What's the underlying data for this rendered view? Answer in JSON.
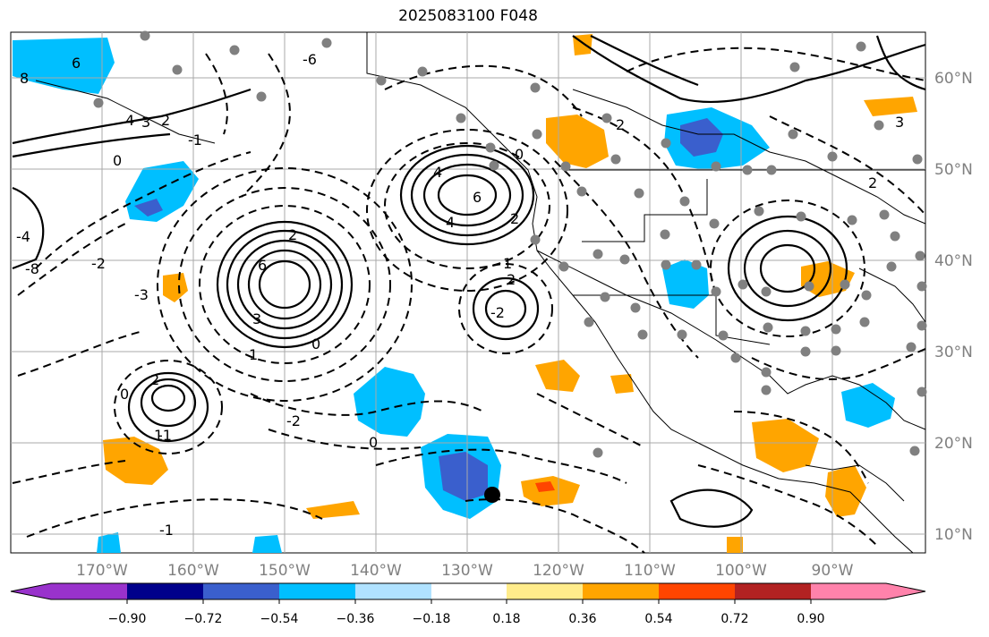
{
  "title": "2025083100 F048",
  "map": {
    "longitude_labels": [
      "170°W",
      "160°W",
      "150°W",
      "140°W",
      "130°W",
      "120°W",
      "110°W",
      "100°W",
      "90°W"
    ],
    "latitude_labels": [
      "10°N",
      "20°N",
      "30°N",
      "40°N",
      "50°N",
      "60°N"
    ],
    "contour_labels": [
      "6",
      "8",
      "4",
      "3",
      "2",
      "0",
      "-1",
      "-2",
      "-3",
      "-4",
      "-6",
      "-8",
      "6",
      "3",
      "2",
      "1",
      "0",
      "-2",
      "6",
      "4",
      "2",
      "0",
      "2",
      "1",
      "0",
      "-1",
      "2",
      "1",
      "0",
      "-1",
      "-2",
      "2",
      "3",
      "4",
      "2"
    ],
    "stations_marker": "gray-dot",
    "storm_marker": "black-dot"
  },
  "colorbar": {
    "tick_labels": [
      "−0.90",
      "−0.72",
      "−0.54",
      "−0.36",
      "−0.18",
      "0.18",
      "0.36",
      "0.54",
      "0.72",
      "0.90"
    ],
    "colors": [
      "#9932CC",
      "#00008B",
      "#3A5FCD",
      "#00BFFF",
      "#B0E2FF",
      "#FFFFFF",
      "#FFEC8B",
      "#FFA500",
      "#FF4500",
      "#B22222",
      "#FF82AB"
    ]
  },
  "colors": {
    "land_line": "#000000",
    "grid": "#a9a9a9",
    "station": "#808080"
  }
}
